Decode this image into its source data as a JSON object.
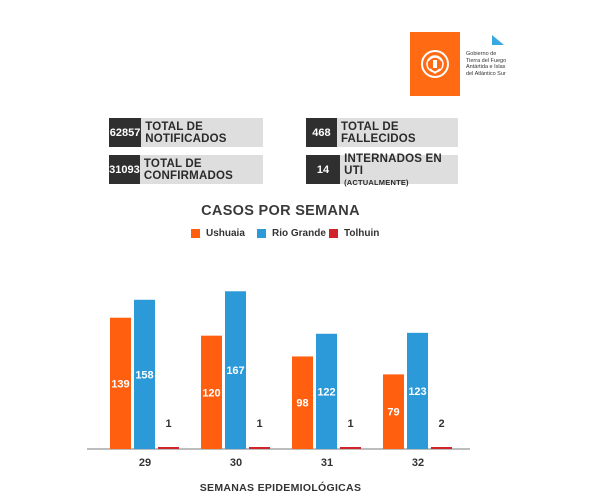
{
  "logo": {
    "lines": [
      "Gobierno de",
      "Tierra del Fuego",
      "Antártida e Islas",
      "del Atlántico Sur"
    ],
    "color": "#ff6a13"
  },
  "stats": [
    {
      "value": "62857",
      "label": "TOTAL DE NOTIFICADOS",
      "sub": ""
    },
    {
      "value": "468",
      "label": "TOTAL DE FALLECIDOS",
      "sub": ""
    },
    {
      "value": "31093",
      "label": "TOTAL DE CONFIRMADOS",
      "sub": ""
    },
    {
      "value": "14",
      "label": "INTERNADOS EN UTI",
      "sub": "(ACTUALMENTE)"
    }
  ],
  "chart_data": {
    "type": "bar",
    "title": "CASOS POR SEMANA",
    "xlabel": "SEMANAS EPIDEMIOLÓGICAS",
    "ylabel": "",
    "categories": [
      "29",
      "30",
      "31",
      "32"
    ],
    "series": [
      {
        "name": "Ushuaia",
        "color": "#ff5f0e",
        "values": [
          139,
          120,
          98,
          79
        ]
      },
      {
        "name": "Rio Grande",
        "color": "#2c9ad8",
        "values": [
          158,
          167,
          122,
          123
        ]
      },
      {
        "name": "Tolhuin",
        "color": "#d0242b",
        "values": [
          1,
          1,
          1,
          2
        ]
      }
    ],
    "ylim": [
      0,
      180
    ],
    "grid": false,
    "legend": "top-center"
  }
}
